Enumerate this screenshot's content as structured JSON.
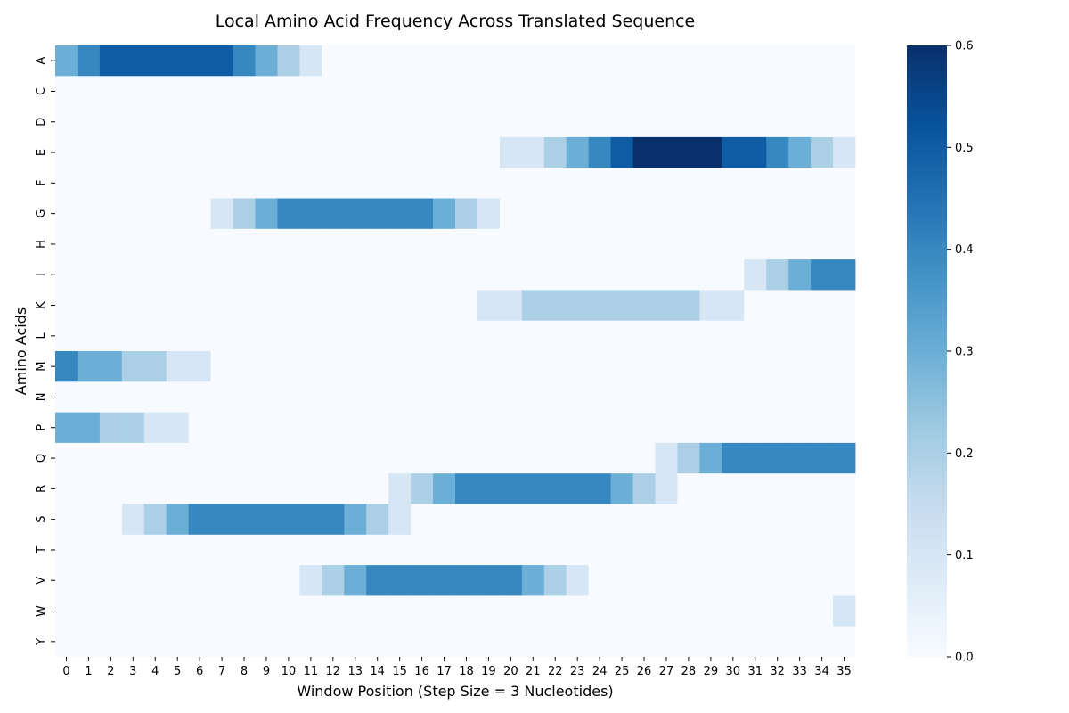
{
  "chart_data": {
    "type": "heatmap",
    "title": "Local Amino Acid Frequency Across Translated Sequence",
    "xlabel": "Window Position (Step Size = 3 Nucleotides)",
    "ylabel": "Amino Acids",
    "x": [
      0,
      1,
      2,
      3,
      4,
      5,
      6,
      7,
      8,
      9,
      10,
      11,
      12,
      13,
      14,
      15,
      16,
      17,
      18,
      19,
      20,
      21,
      22,
      23,
      24,
      25,
      26,
      27,
      28,
      29,
      30,
      31,
      32,
      33,
      34,
      35
    ],
    "y": [
      "A",
      "C",
      "D",
      "E",
      "F",
      "G",
      "H",
      "I",
      "K",
      "L",
      "M",
      "N",
      "P",
      "Q",
      "R",
      "S",
      "T",
      "V",
      "W",
      "Y"
    ],
    "z": [
      [
        0.3,
        0.4,
        0.5,
        0.5,
        0.5,
        0.5,
        0.5,
        0.5,
        0.4,
        0.3,
        0.2,
        0.1,
        0,
        0,
        0,
        0,
        0,
        0,
        0,
        0,
        0,
        0,
        0,
        0,
        0,
        0,
        0,
        0,
        0,
        0,
        0,
        0,
        0,
        0,
        0,
        0
      ],
      [
        0,
        0,
        0,
        0,
        0,
        0,
        0,
        0,
        0,
        0,
        0,
        0,
        0,
        0,
        0,
        0,
        0,
        0,
        0,
        0,
        0,
        0,
        0,
        0,
        0,
        0,
        0,
        0,
        0,
        0,
        0,
        0,
        0,
        0,
        0,
        0
      ],
      [
        0,
        0,
        0,
        0,
        0,
        0,
        0,
        0,
        0,
        0,
        0,
        0,
        0,
        0,
        0,
        0,
        0,
        0,
        0,
        0,
        0,
        0,
        0,
        0,
        0,
        0,
        0,
        0,
        0,
        0,
        0,
        0,
        0,
        0,
        0,
        0
      ],
      [
        0,
        0,
        0,
        0,
        0,
        0,
        0,
        0,
        0,
        0,
        0,
        0,
        0,
        0,
        0,
        0,
        0,
        0,
        0,
        0,
        0.1,
        0.1,
        0.2,
        0.3,
        0.4,
        0.5,
        0.6,
        0.6,
        0.6,
        0.6,
        0.5,
        0.5,
        0.4,
        0.3,
        0.2,
        0.1
      ],
      [
        0,
        0,
        0,
        0,
        0,
        0,
        0,
        0,
        0,
        0,
        0,
        0,
        0,
        0,
        0,
        0,
        0,
        0,
        0,
        0,
        0,
        0,
        0,
        0,
        0,
        0,
        0,
        0,
        0,
        0,
        0,
        0,
        0,
        0,
        0,
        0
      ],
      [
        0,
        0,
        0,
        0,
        0,
        0,
        0,
        0.1,
        0.2,
        0.3,
        0.4,
        0.4,
        0.4,
        0.4,
        0.4,
        0.4,
        0.4,
        0.3,
        0.2,
        0.1,
        0,
        0,
        0,
        0,
        0,
        0,
        0,
        0,
        0,
        0,
        0,
        0,
        0,
        0,
        0,
        0
      ],
      [
        0,
        0,
        0,
        0,
        0,
        0,
        0,
        0,
        0,
        0,
        0,
        0,
        0,
        0,
        0,
        0,
        0,
        0,
        0,
        0,
        0,
        0,
        0,
        0,
        0,
        0,
        0,
        0,
        0,
        0,
        0,
        0,
        0,
        0,
        0,
        0
      ],
      [
        0,
        0,
        0,
        0,
        0,
        0,
        0,
        0,
        0,
        0,
        0,
        0,
        0,
        0,
        0,
        0,
        0,
        0,
        0,
        0,
        0,
        0,
        0,
        0,
        0,
        0,
        0,
        0,
        0,
        0,
        0,
        0.1,
        0.2,
        0.3,
        0.4,
        0.4
      ],
      [
        0,
        0,
        0,
        0,
        0,
        0,
        0,
        0,
        0,
        0,
        0,
        0,
        0,
        0,
        0,
        0,
        0,
        0,
        0,
        0.1,
        0.1,
        0.2,
        0.2,
        0.2,
        0.2,
        0.2,
        0.2,
        0.2,
        0.2,
        0.1,
        0.1,
        0,
        0,
        0,
        0,
        0
      ],
      [
        0,
        0,
        0,
        0,
        0,
        0,
        0,
        0,
        0,
        0,
        0,
        0,
        0,
        0,
        0,
        0,
        0,
        0,
        0,
        0,
        0,
        0,
        0,
        0,
        0,
        0,
        0,
        0,
        0,
        0,
        0,
        0,
        0,
        0,
        0,
        0
      ],
      [
        0.4,
        0.3,
        0.3,
        0.2,
        0.2,
        0.1,
        0.1,
        0,
        0,
        0,
        0,
        0,
        0,
        0,
        0,
        0,
        0,
        0,
        0,
        0,
        0,
        0,
        0,
        0,
        0,
        0,
        0,
        0,
        0,
        0,
        0,
        0,
        0,
        0,
        0,
        0
      ],
      [
        0,
        0,
        0,
        0,
        0,
        0,
        0,
        0,
        0,
        0,
        0,
        0,
        0,
        0,
        0,
        0,
        0,
        0,
        0,
        0,
        0,
        0,
        0,
        0,
        0,
        0,
        0,
        0,
        0,
        0,
        0,
        0,
        0,
        0,
        0,
        0
      ],
      [
        0.3,
        0.3,
        0.2,
        0.2,
        0.1,
        0.1,
        0,
        0,
        0,
        0,
        0,
        0,
        0,
        0,
        0,
        0,
        0,
        0,
        0,
        0,
        0,
        0,
        0,
        0,
        0,
        0,
        0,
        0,
        0,
        0,
        0,
        0,
        0,
        0,
        0,
        0
      ],
      [
        0,
        0,
        0,
        0,
        0,
        0,
        0,
        0,
        0,
        0,
        0,
        0,
        0,
        0,
        0,
        0,
        0,
        0,
        0,
        0,
        0,
        0,
        0,
        0,
        0,
        0,
        0,
        0.1,
        0.2,
        0.3,
        0.4,
        0.4,
        0.4,
        0.4,
        0.4,
        0.4
      ],
      [
        0,
        0,
        0,
        0,
        0,
        0,
        0,
        0,
        0,
        0,
        0,
        0,
        0,
        0,
        0,
        0.1,
        0.2,
        0.3,
        0.4,
        0.4,
        0.4,
        0.4,
        0.4,
        0.4,
        0.4,
        0.3,
        0.2,
        0.1,
        0,
        0,
        0,
        0,
        0,
        0,
        0,
        0
      ],
      [
        0,
        0,
        0,
        0.1,
        0.2,
        0.3,
        0.4,
        0.4,
        0.4,
        0.4,
        0.4,
        0.4,
        0.4,
        0.3,
        0.2,
        0.1,
        0,
        0,
        0,
        0,
        0,
        0,
        0,
        0,
        0,
        0,
        0,
        0,
        0,
        0,
        0,
        0,
        0,
        0,
        0,
        0
      ],
      [
        0,
        0,
        0,
        0,
        0,
        0,
        0,
        0,
        0,
        0,
        0,
        0,
        0,
        0,
        0,
        0,
        0,
        0,
        0,
        0,
        0,
        0,
        0,
        0,
        0,
        0,
        0,
        0,
        0,
        0,
        0,
        0,
        0,
        0,
        0,
        0
      ],
      [
        0,
        0,
        0,
        0,
        0,
        0,
        0,
        0,
        0,
        0,
        0,
        0.1,
        0.2,
        0.3,
        0.4,
        0.4,
        0.4,
        0.4,
        0.4,
        0.4,
        0.4,
        0.3,
        0.2,
        0.1,
        0,
        0,
        0,
        0,
        0,
        0,
        0,
        0,
        0,
        0,
        0,
        0
      ],
      [
        0,
        0,
        0,
        0,
        0,
        0,
        0,
        0,
        0,
        0,
        0,
        0,
        0,
        0,
        0,
        0,
        0,
        0,
        0,
        0,
        0,
        0,
        0,
        0,
        0,
        0,
        0,
        0,
        0,
        0,
        0,
        0,
        0,
        0,
        0,
        0.1
      ],
      [
        0,
        0,
        0,
        0,
        0,
        0,
        0,
        0,
        0,
        0,
        0,
        0,
        0,
        0,
        0,
        0,
        0,
        0,
        0,
        0,
        0,
        0,
        0,
        0,
        0,
        0,
        0,
        0,
        0,
        0,
        0,
        0,
        0,
        0,
        0,
        0
      ]
    ],
    "zlim": [
      0,
      0.6
    ],
    "colorbar_ticks": [
      "0.0",
      "0.1",
      "0.2",
      "0.3",
      "0.4",
      "0.5",
      "0.6"
    ],
    "colormap": "Blues",
    "colormap_stops": [
      "#f7fbff",
      "#deebf7",
      "#c6dbef",
      "#9ecae1",
      "#6baed6",
      "#4292c6",
      "#2171b5",
      "#08519c",
      "#08306b"
    ],
    "grid": false,
    "legend": "colorbar-right"
  }
}
